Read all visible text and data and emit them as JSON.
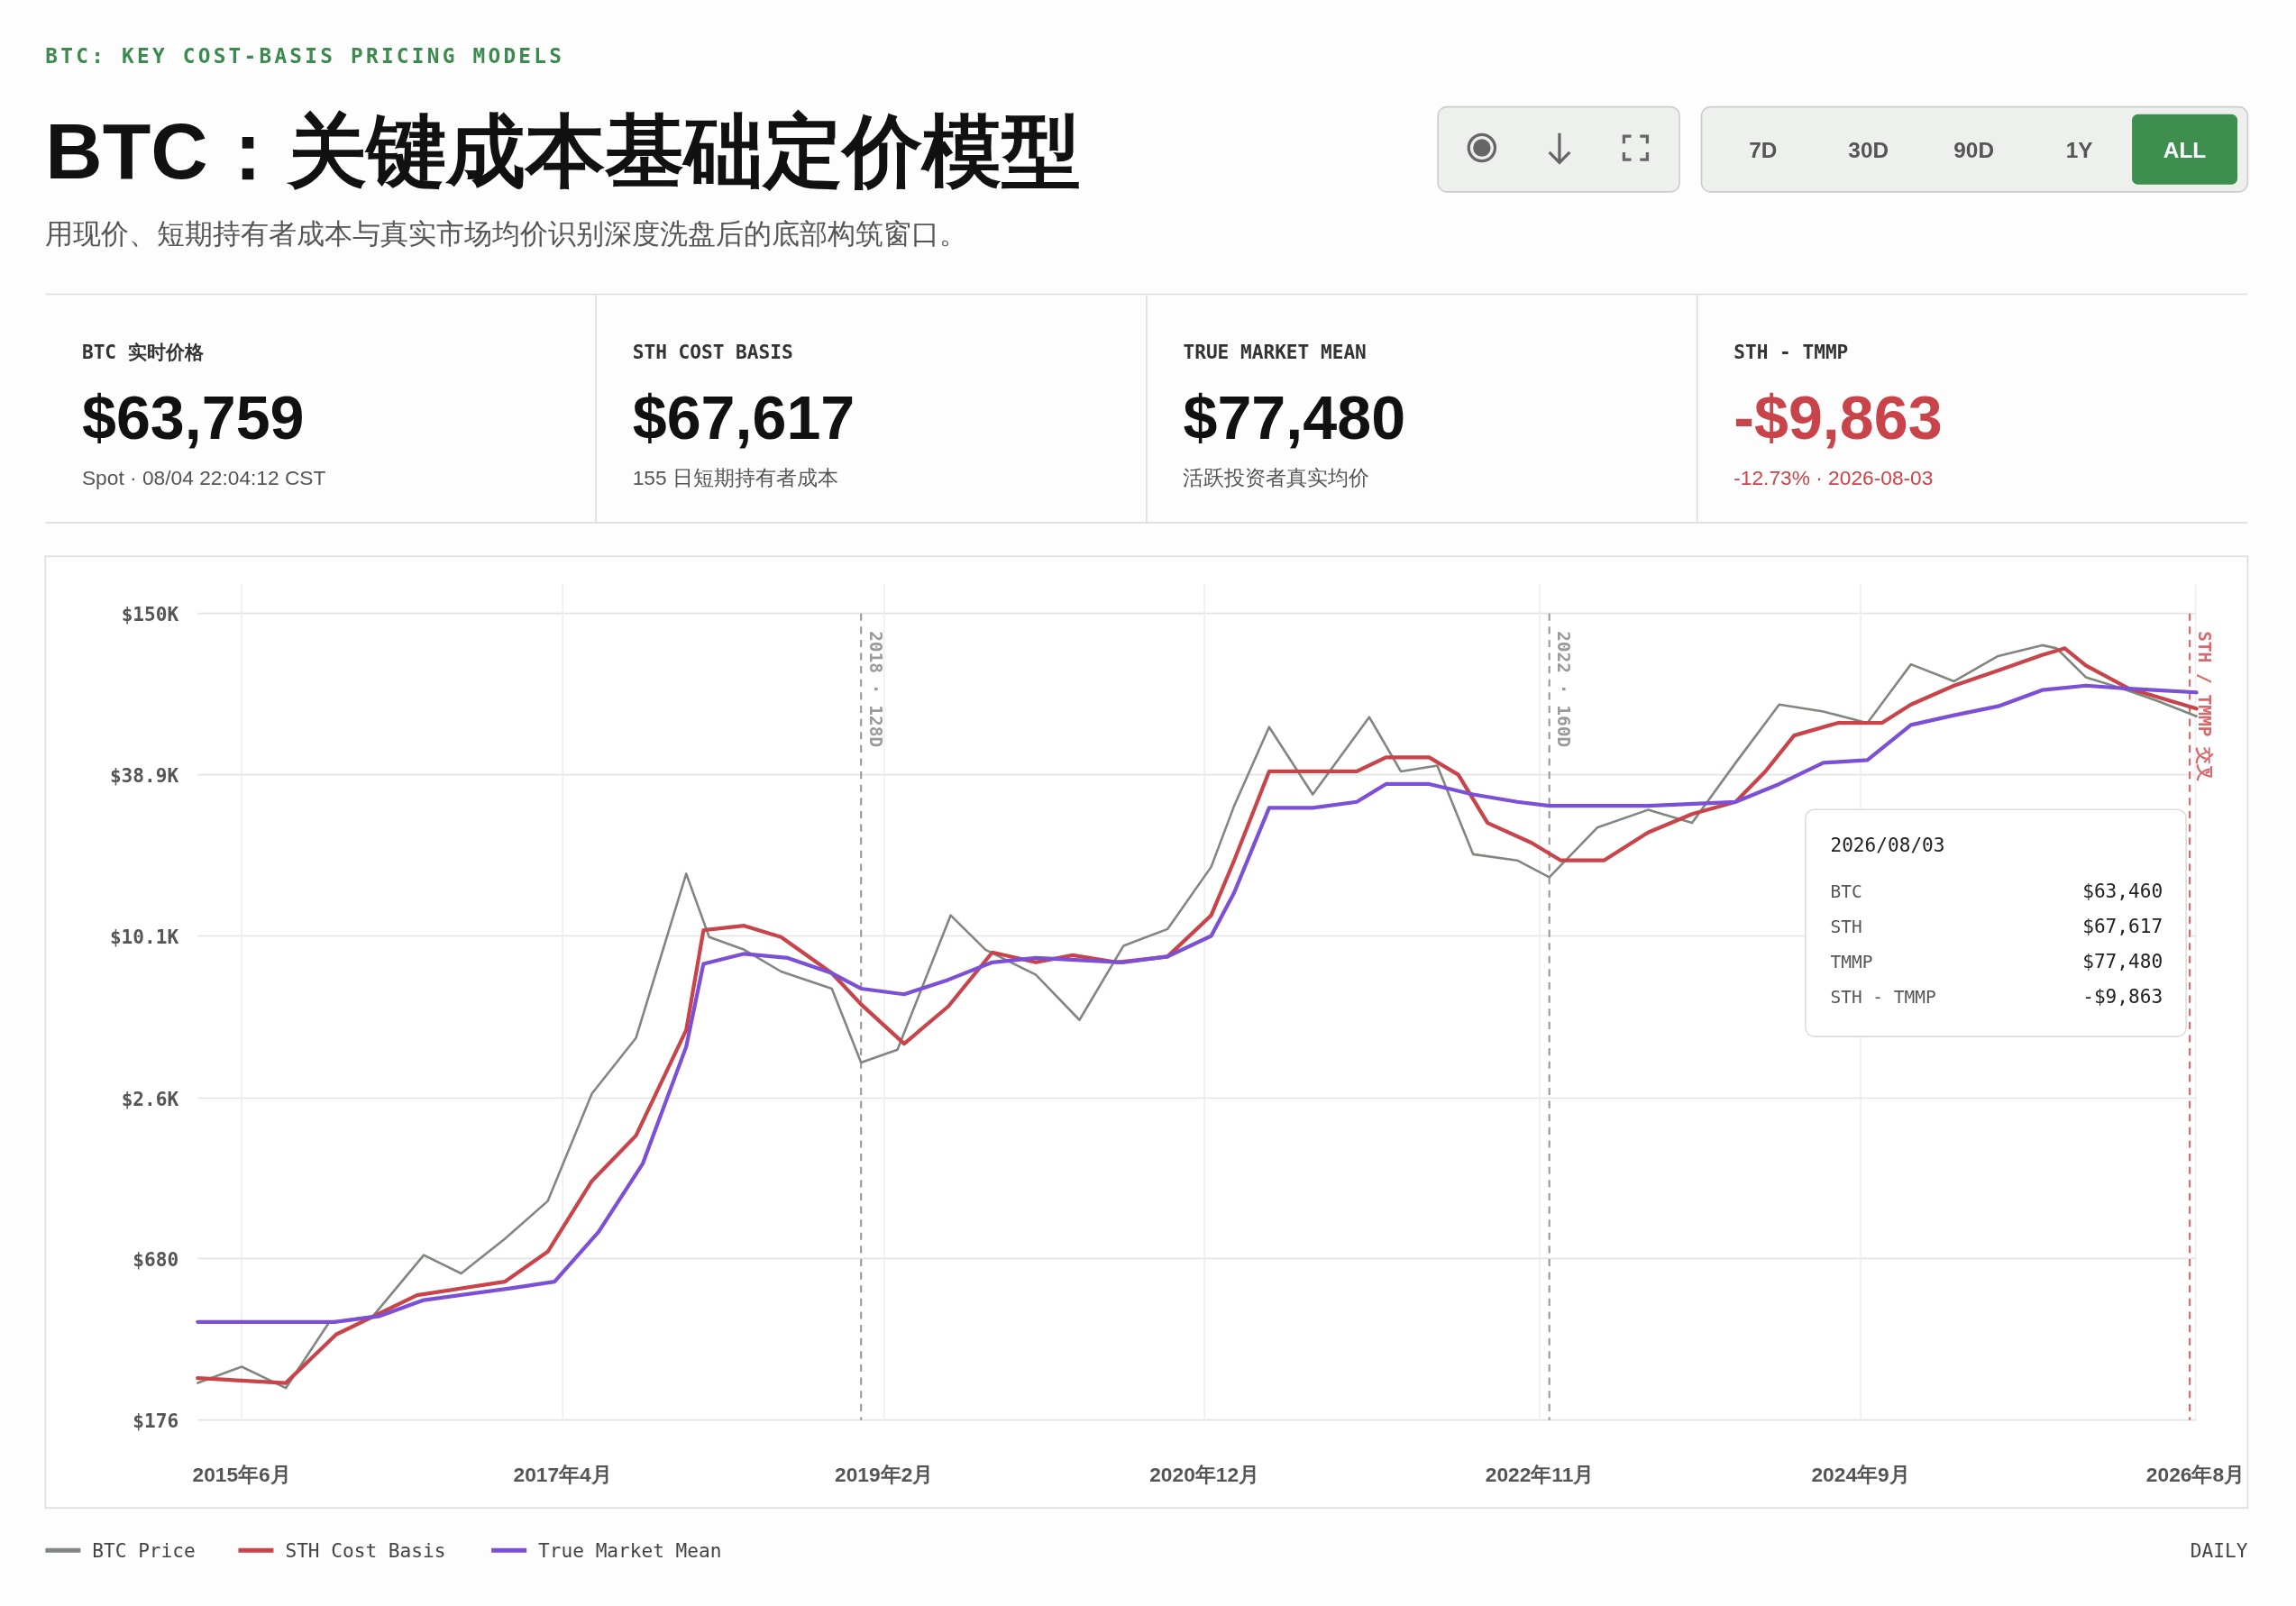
{
  "chart_data": [
    {
      "type": "other",
      "title": "BTC：关键成本基础定价模型",
      "subtitle": "用现价、短期持有者成本与真实市场均价识别深度洗盘后的底部构筑窗口。",
      "annotations": [
        "BTC: KEY COST-BASIS PRICING MODELS",
        "7D",
        "30D",
        "90D",
        "1Y",
        "ALL",
        "BTC 实时价格",
        "$63,759",
        "Spot · 08/04 22:04:12 CST",
        "STH COST BASIS",
        "$67,617",
        "155 日短期持有者成本",
        "TRUE MARKET MEAN",
        "$77,480",
        "活跃投资者真实均价",
        "STH - TMMP",
        "-$9,863",
        "-12.73% · 2026-08-03"
      ]
    },
    {
      "type": "line",
      "log": "y",
      "grid": true,
      "legend": "bottom left",
      "xlim": [
        "2015-03-01",
        "2026-08-03"
      ],
      "xticks": [
        {
          "value": "2015-06-01",
          "label": "2015年6月"
        },
        {
          "value": "2017-04-01",
          "label": "2017年4月"
        },
        {
          "value": "2019-02-01",
          "label": "2019年2月"
        },
        {
          "value": "2020-12-01",
          "label": "2020年12月"
        },
        {
          "value": "2022-11-01",
          "label": "2022年11月"
        },
        {
          "value": "2024-09-01",
          "label": "2024年9月"
        },
        {
          "value": "2026-08-01",
          "label": "2026年8月"
        }
      ],
      "ylim": [
        176,
        150000
      ],
      "yticks": [
        {
          "value": 176,
          "label": "$176"
        },
        {
          "value": 680,
          "label": "$680"
        },
        {
          "value": 2600,
          "label": "$2.6K"
        },
        {
          "value": 10100,
          "label": "$10.1K"
        },
        {
          "value": 38900,
          "label": "$38.9K"
        },
        {
          "value": 150000,
          "label": "$150K"
        }
      ],
      "ref_lines": [
        {
          "axis": "x",
          "value": "2018-12-15",
          "label": "2018 · 128D",
          "color": "#9a9a9a",
          "line_style": "dashed"
        },
        {
          "axis": "x",
          "value": "2022-11-21",
          "label": "2022 · 160D",
          "color": "#9a9a9a",
          "line_style": "dashed"
        },
        {
          "axis": "x",
          "value": "2026-07-20",
          "label": "STH / TMMP 交叉",
          "color": "#d9676b",
          "line_style": "dashed"
        }
      ],
      "series": [
        {
          "name": "BTC Price",
          "color": "#7f877f",
          "x": [
            "2015-03-01",
            "2015-06-01",
            "2015-09-01",
            "2015-12-01",
            "2016-03-01",
            "2016-06-15",
            "2016-09-01",
            "2016-12-01",
            "2017-03-01",
            "2017-06-01",
            "2017-09-01",
            "2017-12-15",
            "2018-02-01",
            "2018-04-15",
            "2018-07-01",
            "2018-10-15",
            "2018-12-15",
            "2019-03-01",
            "2019-06-20",
            "2019-09-01",
            "2019-12-15",
            "2020-03-15",
            "2020-06-15",
            "2020-09-15",
            "2020-12-15",
            "2021-02-01",
            "2021-04-15",
            "2021-07-15",
            "2021-11-10",
            "2022-01-15",
            "2022-04-01",
            "2022-06-15",
            "2022-09-15",
            "2022-11-21",
            "2023-03-01",
            "2023-06-15",
            "2023-09-15",
            "2023-12-15",
            "2024-03-15",
            "2024-06-15",
            "2024-09-15",
            "2024-12-15",
            "2025-03-15",
            "2025-06-15",
            "2025-09-15",
            "2025-10-15",
            "2025-12-15",
            "2026-03-01",
            "2026-05-15",
            "2026-08-03"
          ],
          "values": [
            240,
            275,
            230,
            400,
            420,
            700,
            600,
            800,
            1100,
            2700,
            4300,
            17000,
            10000,
            9000,
            7500,
            6500,
            3500,
            3900,
            12000,
            9000,
            7300,
            5000,
            9300,
            10700,
            18000,
            30000,
            58000,
            33000,
            63000,
            40000,
            42000,
            20000,
            19000,
            16500,
            25000,
            29000,
            26000,
            43000,
            70000,
            66000,
            60000,
            98000,
            85000,
            105000,
            115000,
            112000,
            88000,
            80000,
            72000,
            63460
          ]
        },
        {
          "name": "STH Cost Basis",
          "color": "#c9444a",
          "x": [
            "2015-03-01",
            "2015-09-01",
            "2015-12-15",
            "2016-06-01",
            "2016-12-01",
            "2017-03-01",
            "2017-06-01",
            "2017-09-01",
            "2017-12-15",
            "2018-01-20",
            "2018-04-15",
            "2018-07-01",
            "2018-10-15",
            "2018-12-15",
            "2019-03-15",
            "2019-06-15",
            "2019-09-15",
            "2019-12-15",
            "2020-03-01",
            "2020-06-01",
            "2020-09-15",
            "2020-12-15",
            "2021-02-01",
            "2021-04-15",
            "2021-07-15",
            "2021-10-15",
            "2021-12-15",
            "2022-03-15",
            "2022-05-15",
            "2022-07-15",
            "2022-10-15",
            "2022-12-15",
            "2023-03-15",
            "2023-06-15",
            "2023-09-15",
            "2023-12-15",
            "2024-02-15",
            "2024-04-15",
            "2024-07-15",
            "2024-10-15",
            "2024-12-15",
            "2025-03-15",
            "2025-06-15",
            "2025-09-15",
            "2025-11-01",
            "2025-12-15",
            "2026-03-15",
            "2026-08-03"
          ],
          "values": [
            250,
            240,
            360,
            500,
            560,
            720,
            1300,
            1900,
            4600,
            10600,
            11000,
            10000,
            7400,
            5700,
            4100,
            5600,
            8800,
            8100,
            8600,
            8100,
            8500,
            12000,
            19000,
            40000,
            40000,
            40000,
            45000,
            45000,
            38900,
            26000,
            22000,
            19000,
            19000,
            24000,
            28000,
            31000,
            40000,
            54000,
            60000,
            60000,
            70000,
            82000,
            93000,
            106000,
            112000,
            97000,
            80000,
            67617
          ]
        },
        {
          "name": "True Market Mean",
          "color": "#7b4fd6",
          "x": [
            "2015-03-01",
            "2015-09-01",
            "2015-12-15",
            "2016-03-15",
            "2016-06-15",
            "2016-12-15",
            "2017-03-15",
            "2017-06-15",
            "2017-09-15",
            "2017-12-15",
            "2018-01-20",
            "2018-04-15",
            "2018-07-15",
            "2018-10-15",
            "2018-12-15",
            "2019-03-15",
            "2019-06-15",
            "2019-09-15",
            "2019-12-15",
            "2020-06-15",
            "2020-09-15",
            "2020-12-15",
            "2021-02-01",
            "2021-04-15",
            "2021-07-15",
            "2021-10-15",
            "2021-12-15",
            "2022-03-15",
            "2022-06-15",
            "2022-09-15",
            "2022-11-21",
            "2023-06-15",
            "2023-12-15",
            "2024-03-15",
            "2024-06-15",
            "2024-09-15",
            "2024-12-15",
            "2025-03-15",
            "2025-06-15",
            "2025-09-15",
            "2025-12-15",
            "2026-03-15",
            "2026-08-03"
          ],
          "values": [
            400,
            400,
            400,
            420,
            480,
            530,
            560,
            850,
            1500,
            4000,
            8000,
            8700,
            8400,
            7400,
            6500,
            6200,
            7000,
            8100,
            8400,
            8100,
            8500,
            10100,
            14500,
            29500,
            29500,
            31000,
            36000,
            36000,
            33000,
            31000,
            30000,
            30000,
            31000,
            36000,
            43000,
            44000,
            59000,
            64000,
            69000,
            79000,
            82000,
            80000,
            77480
          ]
        }
      ],
      "annotations": [
        "DAILY",
        "2026/08/03",
        "BTC",
        "$63,460",
        "STH",
        "$67,617",
        "TMMP",
        "$77,480",
        "STH - TMMP",
        "-$9,863"
      ]
    }
  ]
}
